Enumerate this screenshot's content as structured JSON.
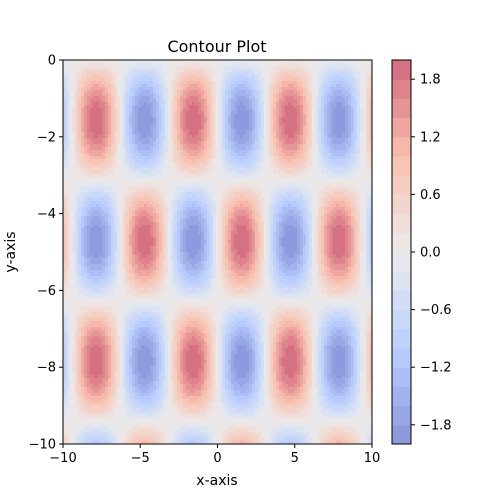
{
  "chart_data": {
    "type": "contour",
    "title": "Contour Plot",
    "xlabel": "x-axis",
    "ylabel": "y-axis",
    "xlim": [
      -10,
      10
    ],
    "ylim": [
      -10,
      0
    ],
    "x_ticks": [
      -10,
      -5,
      0,
      5,
      10
    ],
    "y_ticks": [
      0,
      -2,
      -4,
      -6,
      -8,
      -10
    ],
    "z_function": "sin(x) * sin(y)",
    "colormap": "coolwarm",
    "alpha": 0.6,
    "zlim": [
      -2.0,
      2.0
    ],
    "level_step": 0.2,
    "colorbar": {
      "ticks": [
        1.8,
        1.2,
        0.6,
        0.0,
        -0.6,
        -1.2,
        -1.8
      ],
      "tick_labels": [
        "1.8",
        "1.2",
        "0.6",
        "0.0",
        "−0.6",
        "−1.2",
        "−1.8"
      ]
    },
    "grid": false
  }
}
